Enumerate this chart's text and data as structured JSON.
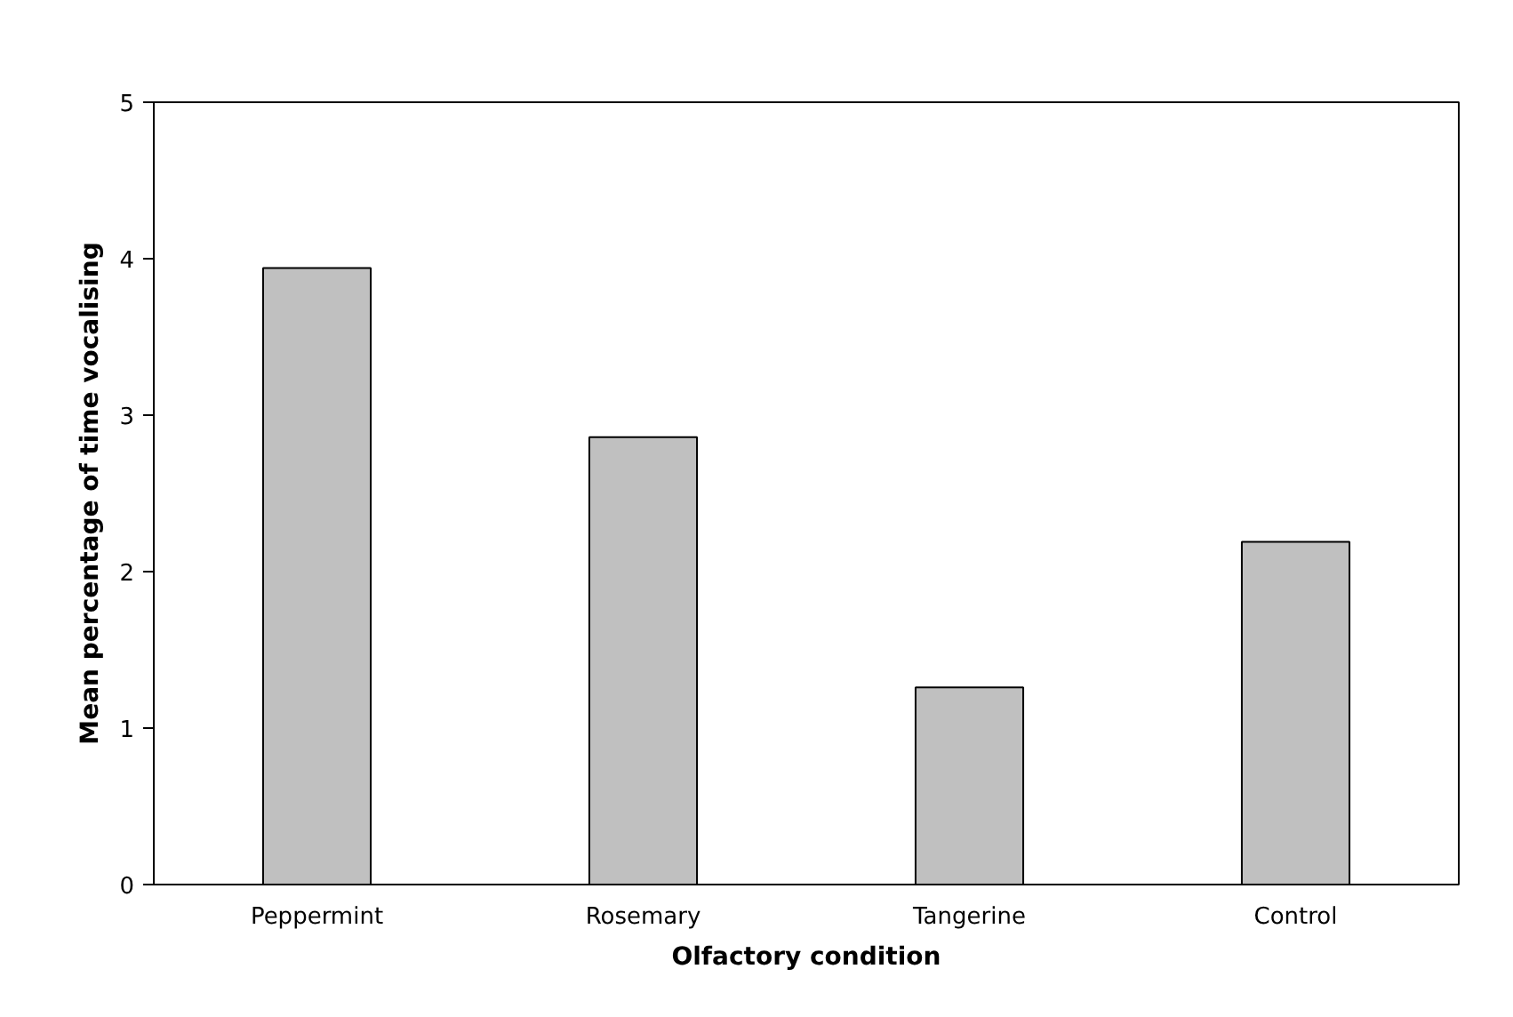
{
  "chart_data": {
    "type": "bar",
    "xlabel": "Olfactory condition",
    "ylabel": "Mean percentage of time vocalising",
    "categories": [
      "Peppermint",
      "Rosemary",
      "Tangerine",
      "Control"
    ],
    "values": [
      3.94,
      2.86,
      1.26,
      2.19
    ],
    "color": "#c0c0c0",
    "ylim": [
      0,
      5
    ],
    "yticks": [
      0,
      1,
      2,
      3,
      4,
      5
    ],
    "grid": false
  }
}
